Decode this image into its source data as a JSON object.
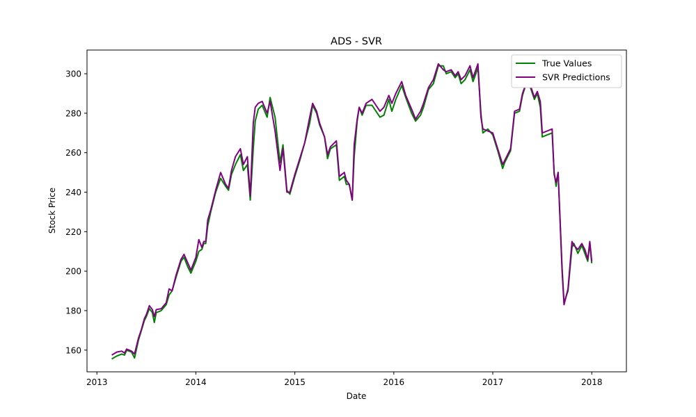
{
  "chart_data": {
    "type": "line",
    "title": "ADS - SVR",
    "xlabel": "Date",
    "ylabel": "Stock Price",
    "xlim": [
      2012.9,
      2018.35
    ],
    "ylim": [
      149,
      312
    ],
    "xticks": [
      2013,
      2014,
      2015,
      2016,
      2017,
      2018
    ],
    "xtick_labels": [
      "2013",
      "2014",
      "2015",
      "2016",
      "2017",
      "2018"
    ],
    "yticks": [
      160,
      180,
      200,
      220,
      240,
      260,
      280,
      300
    ],
    "grid": false,
    "legend_position": "top-right",
    "series": [
      {
        "name": "True Values",
        "color": "#008000",
        "points": [
          [
            2013.15,
            155.5
          ],
          [
            2013.2,
            157
          ],
          [
            2013.25,
            158
          ],
          [
            2013.28,
            157.5
          ],
          [
            2013.3,
            160
          ],
          [
            2013.35,
            159
          ],
          [
            2013.38,
            156
          ],
          [
            2013.42,
            165
          ],
          [
            2013.45,
            170
          ],
          [
            2013.48,
            175
          ],
          [
            2013.5,
            177
          ],
          [
            2013.53,
            181
          ],
          [
            2013.56,
            179
          ],
          [
            2013.58,
            174
          ],
          [
            2013.6,
            179
          ],
          [
            2013.65,
            180
          ],
          [
            2013.7,
            183
          ],
          [
            2013.73,
            188
          ],
          [
            2013.76,
            190
          ],
          [
            2013.8,
            197
          ],
          [
            2013.85,
            205
          ],
          [
            2013.88,
            207
          ],
          [
            2013.92,
            202
          ],
          [
            2013.95,
            199
          ],
          [
            2014.0,
            205
          ],
          [
            2014.03,
            210
          ],
          [
            2014.06,
            211
          ],
          [
            2014.08,
            214
          ],
          [
            2014.1,
            214
          ],
          [
            2014.12,
            223
          ],
          [
            2014.15,
            230
          ],
          [
            2014.2,
            240
          ],
          [
            2014.25,
            247
          ],
          [
            2014.3,
            243
          ],
          [
            2014.33,
            241
          ],
          [
            2014.36,
            249
          ],
          [
            2014.4,
            254
          ],
          [
            2014.45,
            259
          ],
          [
            2014.48,
            251
          ],
          [
            2014.52,
            254
          ],
          [
            2014.55,
            236
          ],
          [
            2014.58,
            262
          ],
          [
            2014.6,
            276
          ],
          [
            2014.63,
            282
          ],
          [
            2014.67,
            284
          ],
          [
            2014.72,
            278
          ],
          [
            2014.75,
            288
          ],
          [
            2014.8,
            278
          ],
          [
            2014.85,
            255
          ],
          [
            2014.88,
            264
          ],
          [
            2014.92,
            241
          ],
          [
            2014.95,
            239
          ],
          [
            2015.0,
            248
          ],
          [
            2015.05,
            256
          ],
          [
            2015.1,
            265
          ],
          [
            2015.15,
            275
          ],
          [
            2015.18,
            284
          ],
          [
            2015.22,
            280
          ],
          [
            2015.25,
            274
          ],
          [
            2015.3,
            268
          ],
          [
            2015.33,
            257
          ],
          [
            2015.36,
            262
          ],
          [
            2015.42,
            264
          ],
          [
            2015.45,
            246
          ],
          [
            2015.5,
            248
          ],
          [
            2015.52,
            244
          ],
          [
            2015.55,
            244
          ],
          [
            2015.58,
            236
          ],
          [
            2015.6,
            258
          ],
          [
            2015.63,
            276
          ],
          [
            2015.65,
            283
          ],
          [
            2015.68,
            279
          ],
          [
            2015.72,
            284
          ],
          [
            2015.78,
            284
          ],
          [
            2015.82,
            281
          ],
          [
            2015.86,
            278
          ],
          [
            2015.9,
            279
          ],
          [
            2015.95,
            287
          ],
          [
            2015.98,
            281
          ],
          [
            2016.02,
            287
          ],
          [
            2016.08,
            294
          ],
          [
            2016.12,
            288
          ],
          [
            2016.18,
            280
          ],
          [
            2016.22,
            276
          ],
          [
            2016.27,
            279
          ],
          [
            2016.3,
            283
          ],
          [
            2016.35,
            292
          ],
          [
            2016.4,
            295
          ],
          [
            2016.45,
            304
          ],
          [
            2016.5,
            304
          ],
          [
            2016.53,
            300
          ],
          [
            2016.58,
            301
          ],
          [
            2016.62,
            298
          ],
          [
            2016.65,
            300
          ],
          [
            2016.68,
            295
          ],
          [
            2016.72,
            297
          ],
          [
            2016.77,
            302
          ],
          [
            2016.8,
            296
          ],
          [
            2016.85,
            303
          ],
          [
            2016.88,
            280
          ],
          [
            2016.9,
            270
          ],
          [
            2016.95,
            272
          ],
          [
            2017.0,
            269
          ],
          [
            2017.05,
            261
          ],
          [
            2017.1,
            252
          ],
          [
            2017.12,
            255
          ],
          [
            2017.18,
            261
          ],
          [
            2017.22,
            280
          ],
          [
            2017.27,
            281
          ],
          [
            2017.3,
            289
          ],
          [
            2017.35,
            297
          ],
          [
            2017.38,
            293
          ],
          [
            2017.42,
            287
          ],
          [
            2017.45,
            290
          ],
          [
            2017.48,
            283
          ],
          [
            2017.5,
            268
          ],
          [
            2017.55,
            269
          ],
          [
            2017.6,
            270
          ],
          [
            2017.62,
            250
          ],
          [
            2017.64,
            243
          ],
          [
            2017.66,
            250
          ],
          [
            2017.7,
            202
          ],
          [
            2017.72,
            184
          ],
          [
            2017.76,
            190
          ],
          [
            2017.8,
            212
          ],
          [
            2017.82,
            214
          ],
          [
            2017.86,
            209
          ],
          [
            2017.9,
            213
          ],
          [
            2017.93,
            209
          ],
          [
            2017.96,
            205
          ],
          [
            2017.98,
            214
          ],
          [
            2018.0,
            204
          ]
        ]
      },
      {
        "name": "SVR Predictions",
        "color": "#800080",
        "points": [
          [
            2013.15,
            157.5
          ],
          [
            2013.2,
            159
          ],
          [
            2013.25,
            159.5
          ],
          [
            2013.28,
            158.5
          ],
          [
            2013.3,
            160.5
          ],
          [
            2013.35,
            159.5
          ],
          [
            2013.38,
            158
          ],
          [
            2013.42,
            166
          ],
          [
            2013.45,
            170.5
          ],
          [
            2013.48,
            176
          ],
          [
            2013.5,
            178
          ],
          [
            2013.53,
            182.5
          ],
          [
            2013.56,
            180.5
          ],
          [
            2013.58,
            177
          ],
          [
            2013.6,
            180.5
          ],
          [
            2013.65,
            181
          ],
          [
            2013.7,
            184
          ],
          [
            2013.73,
            191
          ],
          [
            2013.76,
            190
          ],
          [
            2013.8,
            198
          ],
          [
            2013.85,
            206
          ],
          [
            2013.88,
            208.5
          ],
          [
            2013.92,
            204
          ],
          [
            2013.95,
            200.5
          ],
          [
            2014.0,
            207
          ],
          [
            2014.03,
            216
          ],
          [
            2014.06,
            212
          ],
          [
            2014.08,
            215
          ],
          [
            2014.1,
            215
          ],
          [
            2014.12,
            226
          ],
          [
            2014.15,
            231
          ],
          [
            2014.2,
            241
          ],
          [
            2014.25,
            250
          ],
          [
            2014.3,
            244
          ],
          [
            2014.33,
            242
          ],
          [
            2014.36,
            251
          ],
          [
            2014.4,
            258
          ],
          [
            2014.45,
            262
          ],
          [
            2014.48,
            254
          ],
          [
            2014.52,
            258
          ],
          [
            2014.55,
            238
          ],
          [
            2014.58,
            275
          ],
          [
            2014.6,
            283
          ],
          [
            2014.63,
            285
          ],
          [
            2014.67,
            286
          ],
          [
            2014.72,
            280
          ],
          [
            2014.75,
            286
          ],
          [
            2014.8,
            271
          ],
          [
            2014.85,
            251
          ],
          [
            2014.88,
            262
          ],
          [
            2014.92,
            240
          ],
          [
            2014.95,
            240
          ],
          [
            2015.0,
            249
          ],
          [
            2015.05,
            257
          ],
          [
            2015.1,
            265
          ],
          [
            2015.15,
            278
          ],
          [
            2015.18,
            285
          ],
          [
            2015.22,
            281
          ],
          [
            2015.25,
            275
          ],
          [
            2015.3,
            268
          ],
          [
            2015.33,
            259
          ],
          [
            2015.36,
            263
          ],
          [
            2015.42,
            266
          ],
          [
            2015.45,
            248
          ],
          [
            2015.5,
            250
          ],
          [
            2015.52,
            246
          ],
          [
            2015.55,
            244
          ],
          [
            2015.58,
            236
          ],
          [
            2015.6,
            264
          ],
          [
            2015.63,
            277
          ],
          [
            2015.65,
            283
          ],
          [
            2015.68,
            280
          ],
          [
            2015.72,
            285
          ],
          [
            2015.78,
            287
          ],
          [
            2015.82,
            284
          ],
          [
            2015.86,
            281
          ],
          [
            2015.9,
            283
          ],
          [
            2015.95,
            289
          ],
          [
            2015.98,
            285
          ],
          [
            2016.02,
            290
          ],
          [
            2016.08,
            296
          ],
          [
            2016.12,
            289
          ],
          [
            2016.18,
            282
          ],
          [
            2016.22,
            277
          ],
          [
            2016.27,
            281
          ],
          [
            2016.3,
            285
          ],
          [
            2016.35,
            293
          ],
          [
            2016.4,
            297
          ],
          [
            2016.45,
            305
          ],
          [
            2016.5,
            302
          ],
          [
            2016.53,
            301
          ],
          [
            2016.58,
            302
          ],
          [
            2016.62,
            299
          ],
          [
            2016.65,
            301
          ],
          [
            2016.68,
            297
          ],
          [
            2016.72,
            299
          ],
          [
            2016.77,
            304
          ],
          [
            2016.8,
            298
          ],
          [
            2016.85,
            305
          ],
          [
            2016.88,
            278
          ],
          [
            2016.9,
            272
          ],
          [
            2016.95,
            271
          ],
          [
            2017.0,
            270
          ],
          [
            2017.05,
            262
          ],
          [
            2017.1,
            254
          ],
          [
            2017.12,
            256
          ],
          [
            2017.18,
            262
          ],
          [
            2017.22,
            281
          ],
          [
            2017.27,
            282
          ],
          [
            2017.3,
            290
          ],
          [
            2017.35,
            297
          ],
          [
            2017.38,
            294
          ],
          [
            2017.42,
            288
          ],
          [
            2017.45,
            291
          ],
          [
            2017.48,
            286
          ],
          [
            2017.5,
            270
          ],
          [
            2017.55,
            271
          ],
          [
            2017.6,
            272
          ],
          [
            2017.62,
            249
          ],
          [
            2017.64,
            245
          ],
          [
            2017.66,
            250
          ],
          [
            2017.7,
            200
          ],
          [
            2017.72,
            183
          ],
          [
            2017.76,
            191
          ],
          [
            2017.8,
            215
          ],
          [
            2017.82,
            213
          ],
          [
            2017.86,
            211
          ],
          [
            2017.9,
            214
          ],
          [
            2017.93,
            211
          ],
          [
            2017.96,
            206
          ],
          [
            2017.98,
            215
          ],
          [
            2018.0,
            205
          ]
        ]
      }
    ]
  }
}
